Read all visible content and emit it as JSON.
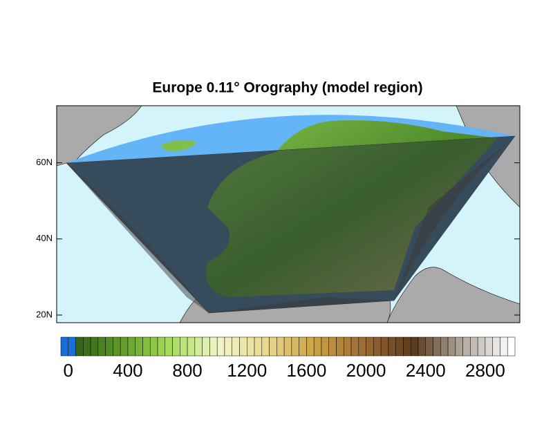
{
  "chart_data": {
    "type": "map",
    "title": "Europe 0.11° Orography (model region)",
    "ylim": [
      18,
      75
    ],
    "yticks": [
      {
        "value": 20,
        "label": "20N"
      },
      {
        "value": 40,
        "label": "40N"
      },
      {
        "value": 60,
        "label": "60N"
      }
    ],
    "colorbar": {
      "lim": [
        -50,
        3000
      ],
      "step": 50,
      "ticks": [
        0,
        400,
        800,
        1200,
        1600,
        2000,
        2400,
        2800
      ],
      "colors": [
        "#1a6fd6",
        "#2e5a12",
        "#5f9a2a",
        "#a6dc5a",
        "#f2f5c8",
        "#e8d890",
        "#caa040",
        "#9a6a34",
        "#5a3a1c",
        "#b0a8a0",
        "#ffffff"
      ]
    }
  }
}
